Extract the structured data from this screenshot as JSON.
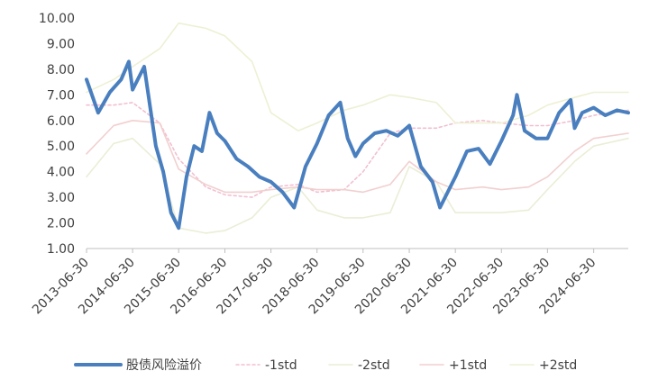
{
  "chart_data": {
    "type": "line",
    "ylim": [
      1.0,
      10.0
    ],
    "y_ticks": [
      "1.00",
      "2.00",
      "3.00",
      "4.00",
      "5.00",
      "6.00",
      "7.00",
      "8.00",
      "9.00",
      "10.00"
    ],
    "x_tick_labels": [
      "2013-06-30",
      "2014-06-30",
      "2015-06-30",
      "2016-06-30",
      "2017-06-30",
      "2018-06-30",
      "2019-06-30",
      "2020-06-30",
      "2021-06-30",
      "2022-06-30",
      "2023-06-30",
      "2024-06-30"
    ],
    "x_range": [
      "2013-06-30",
      "2025-03-31"
    ],
    "grid": false,
    "legend_position": "bottom",
    "series": [
      {
        "name": "股债风险溢价",
        "color": "#4a7fbf",
        "x": [
          "2013-06-30",
          "2013-09-30",
          "2013-12-31",
          "2014-03-31",
          "2014-05-31",
          "2014-06-30",
          "2014-09-30",
          "2014-12-31",
          "2015-02-28",
          "2015-04-30",
          "2015-06-30",
          "2015-08-31",
          "2015-10-31",
          "2015-12-31",
          "2016-02-29",
          "2016-04-30",
          "2016-06-30",
          "2016-09-30",
          "2016-12-31",
          "2017-03-31",
          "2017-06-30",
          "2017-09-30",
          "2017-12-31",
          "2018-03-31",
          "2018-06-30",
          "2018-09-30",
          "2018-12-31",
          "2019-02-28",
          "2019-04-30",
          "2019-06-30",
          "2019-09-30",
          "2019-12-31",
          "2020-03-31",
          "2020-06-30",
          "2020-09-30",
          "2020-12-31",
          "2021-02-28",
          "2021-06-30",
          "2021-09-30",
          "2021-12-31",
          "2022-03-31",
          "2022-06-30",
          "2022-09-30",
          "2022-10-31",
          "2022-12-31",
          "2023-03-31",
          "2023-06-30",
          "2023-09-30",
          "2023-12-31",
          "2024-01-31",
          "2024-03-31",
          "2024-06-30",
          "2024-09-30",
          "2024-12-31",
          "2025-03-31"
        ],
        "values": [
          7.6,
          6.3,
          7.1,
          7.6,
          8.3,
          7.2,
          8.1,
          5.0,
          4.0,
          2.4,
          1.8,
          3.8,
          5.0,
          4.8,
          6.3,
          5.5,
          5.2,
          4.5,
          4.2,
          3.8,
          3.6,
          3.2,
          2.6,
          4.2,
          5.1,
          6.2,
          6.7,
          5.3,
          4.6,
          5.1,
          5.5,
          5.6,
          5.4,
          5.8,
          4.2,
          3.6,
          2.6,
          3.8,
          4.8,
          4.9,
          4.3,
          5.2,
          6.2,
          7.0,
          5.6,
          5.3,
          5.3,
          6.3,
          6.8,
          5.7,
          6.3,
          6.5,
          6.2,
          6.4,
          6.3
        ]
      },
      {
        "name": "-1std",
        "color": "#f2bfd0",
        "x": [
          "2013-06-30",
          "2014-01-31",
          "2014-06-30",
          "2015-01-31",
          "2015-06-30",
          "2016-01-31",
          "2016-06-30",
          "2017-01-31",
          "2017-06-30",
          "2018-01-31",
          "2018-06-30",
          "2019-01-31",
          "2019-06-30",
          "2020-01-31",
          "2020-06-30",
          "2021-01-31",
          "2021-06-30",
          "2022-01-31",
          "2022-06-30",
          "2023-01-31",
          "2023-06-30",
          "2024-01-31",
          "2024-06-30",
          "2025-03-31"
        ],
        "values": [
          6.6,
          6.6,
          6.7,
          5.9,
          4.5,
          3.4,
          3.1,
          3.0,
          3.4,
          3.5,
          3.2,
          3.3,
          4.0,
          5.5,
          5.7,
          5.7,
          5.9,
          6.0,
          5.9,
          5.8,
          5.8,
          6.0,
          6.2,
          6.4
        ]
      },
      {
        "name": "-2std",
        "color": "#eaeed6",
        "x": [
          "2013-06-30",
          "2014-01-31",
          "2014-06-30",
          "2015-01-31",
          "2015-06-30",
          "2016-01-31",
          "2016-06-30",
          "2017-01-31",
          "2017-06-30",
          "2018-01-31",
          "2018-06-30",
          "2019-01-31",
          "2019-06-30",
          "2020-01-31",
          "2020-06-30",
          "2021-01-31",
          "2021-06-30",
          "2022-01-31",
          "2022-06-30",
          "2023-01-31",
          "2023-06-30",
          "2024-01-31",
          "2024-06-30",
          "2025-03-31"
        ],
        "values": [
          3.8,
          5.1,
          5.3,
          4.3,
          1.8,
          1.6,
          1.7,
          2.2,
          3.0,
          3.4,
          2.5,
          2.2,
          2.2,
          2.4,
          4.2,
          3.6,
          2.4,
          2.4,
          2.4,
          2.5,
          3.3,
          4.4,
          5.0,
          5.3
        ]
      },
      {
        "name": "+1std",
        "color": "#f2cfcf",
        "x": [
          "2013-06-30",
          "2014-01-31",
          "2014-06-30",
          "2015-01-31",
          "2015-06-30",
          "2016-01-31",
          "2016-06-30",
          "2017-01-31",
          "2017-06-30",
          "2018-01-31",
          "2018-06-30",
          "2019-01-31",
          "2019-06-30",
          "2020-01-31",
          "2020-06-30",
          "2021-01-31",
          "2021-06-30",
          "2022-01-31",
          "2022-06-30",
          "2023-01-31",
          "2023-06-30",
          "2024-01-31",
          "2024-06-30",
          "2025-03-31"
        ],
        "values": [
          4.7,
          5.8,
          6.0,
          5.9,
          4.1,
          3.5,
          3.2,
          3.2,
          3.3,
          3.4,
          3.3,
          3.3,
          3.2,
          3.5,
          4.4,
          3.6,
          3.3,
          3.4,
          3.3,
          3.4,
          3.8,
          4.8,
          5.3,
          5.5
        ]
      },
      {
        "name": "+2std",
        "color": "#eef0d4",
        "x": [
          "2013-06-30",
          "2014-01-31",
          "2014-06-30",
          "2015-01-31",
          "2015-06-30",
          "2016-01-31",
          "2016-06-30",
          "2017-01-31",
          "2017-06-30",
          "2018-01-31",
          "2018-06-30",
          "2019-01-31",
          "2019-06-30",
          "2020-01-31",
          "2020-06-30",
          "2021-01-31",
          "2021-06-30",
          "2022-01-31",
          "2022-06-30",
          "2023-01-31",
          "2023-06-30",
          "2024-01-31",
          "2024-06-30",
          "2025-03-31"
        ],
        "values": [
          7.1,
          7.6,
          8.1,
          8.8,
          9.8,
          9.6,
          9.3,
          8.3,
          6.3,
          5.6,
          5.9,
          6.4,
          6.6,
          7.0,
          6.9,
          6.7,
          5.9,
          5.9,
          5.9,
          6.2,
          6.6,
          6.9,
          7.1,
          7.1
        ]
      }
    ]
  }
}
